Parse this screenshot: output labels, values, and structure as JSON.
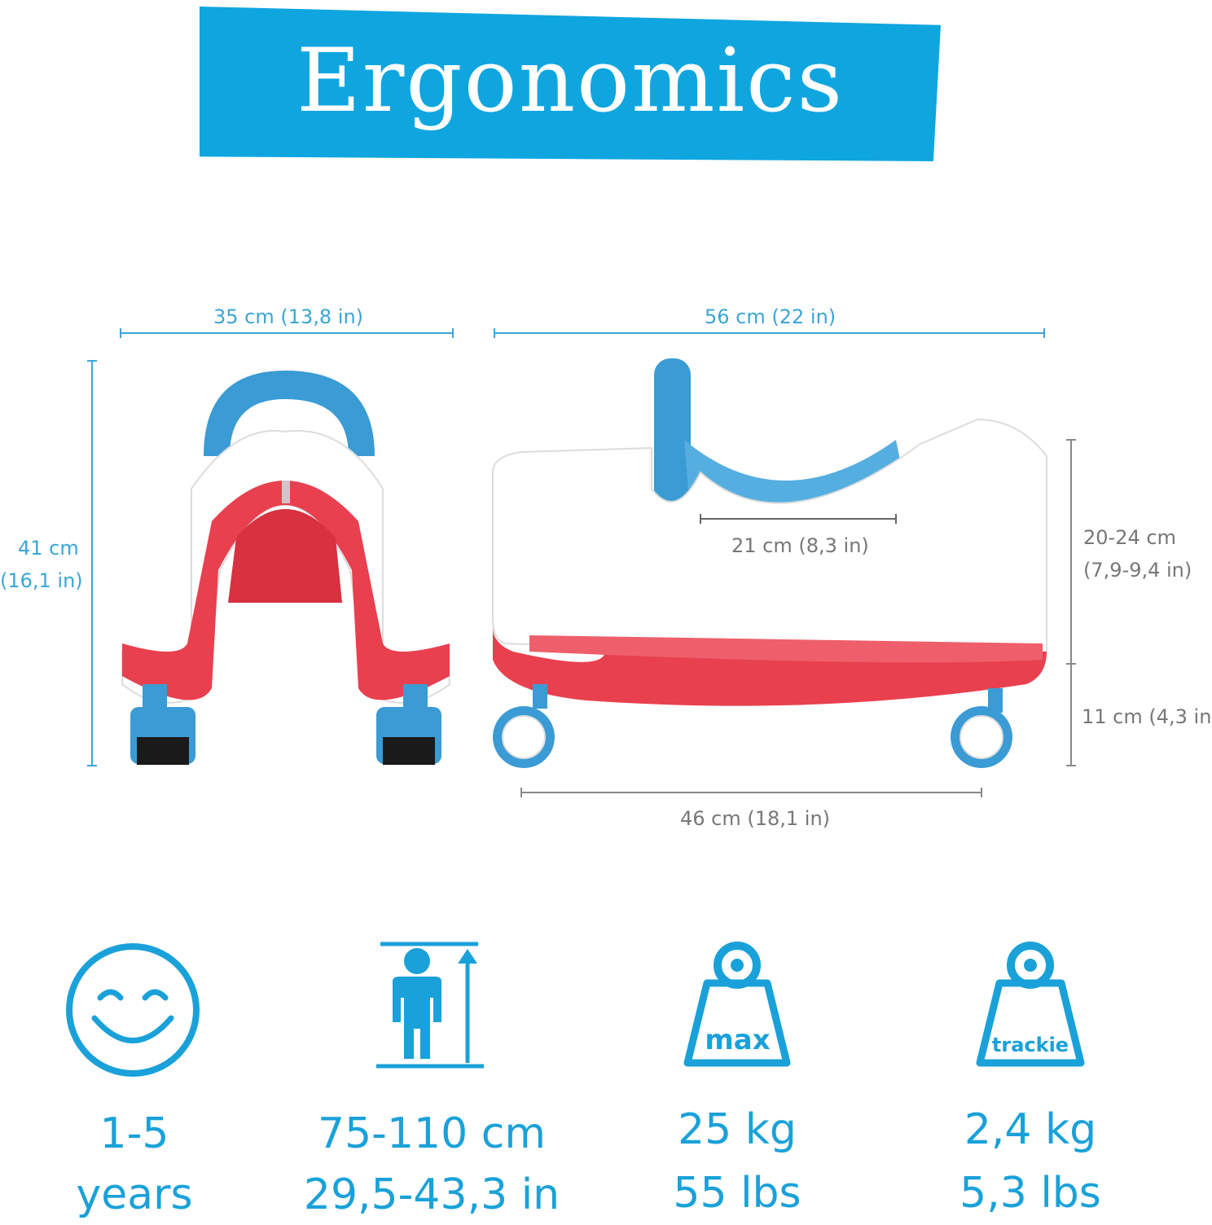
{
  "banner": {
    "title": "Ergonomics"
  },
  "dimensions": {
    "front_width": "35 cm (13,8 in)",
    "front_height_cm": "41 cm",
    "front_height_in": "(16,1 in)",
    "side_length": "56 cm (22 in)",
    "seat_length": "21 cm (8,3 in)",
    "seat_height_cm": "20-24 cm",
    "seat_height_in": "(7,9-9,4 in)",
    "clearance": "11 cm (4,3 in)",
    "wheelbase": "46 cm (18,1 in)"
  },
  "specs": [
    {
      "icon": "smiley-face-icon",
      "line1": "1-5",
      "line2": "years"
    },
    {
      "icon": "child-height-icon",
      "line1": "75-110 cm",
      "line2": "29,5-43,3 in"
    },
    {
      "icon": "max-weight-icon",
      "badge": "max",
      "line1": "25 kg",
      "line2": "55 lbs"
    },
    {
      "icon": "product-weight-icon",
      "badge": "trackie",
      "line1": "2,4 kg",
      "line2": "5,3 lbs"
    }
  ],
  "colors": {
    "accent_blue": "#0fa6e0",
    "icon_blue": "#1aa1d9",
    "product_red": "#e8404f",
    "product_handle_blue": "#3a9bd5"
  }
}
